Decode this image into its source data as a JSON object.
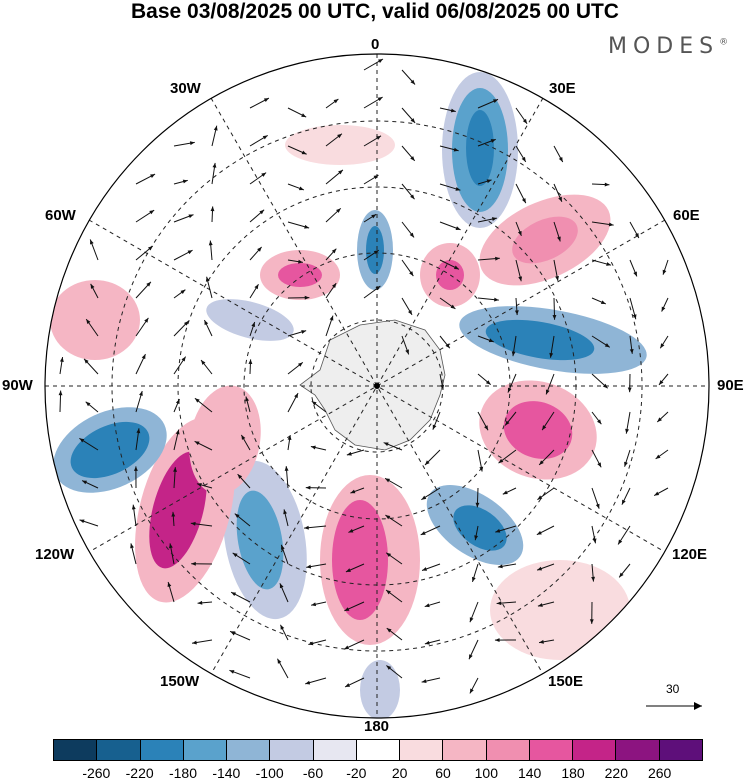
{
  "title": "Base 03/08/2025 00 UTC, valid 06/08/2025 00 UTC",
  "logo": "MODES",
  "logo_mark": "®",
  "lon_labels": {
    "n0": "0",
    "e30": "30E",
    "e60": "60E",
    "e90": "90E",
    "e120": "120E",
    "e150": "150E",
    "s180": "180",
    "w150": "150W",
    "w120": "120W",
    "w90": "90W",
    "w60": "60W",
    "w30": "30W"
  },
  "reference_vector": "30",
  "colorbar": {
    "colors": [
      "#0d3b5e",
      "#17608f",
      "#2b82b8",
      "#5aa2cc",
      "#8fb5d6",
      "#c3cbe3",
      "#e7e7f1",
      "#ffffff",
      "#f9dcdf",
      "#f5b6c4",
      "#f08fb0",
      "#e6569f",
      "#c42488",
      "#8c1480",
      "#5e0f7a"
    ],
    "ticks": [
      "-260",
      "-220",
      "-180",
      "-140",
      "-100",
      "-60",
      "-20",
      "20",
      "60",
      "100",
      "140",
      "180",
      "220",
      "260"
    ]
  }
}
